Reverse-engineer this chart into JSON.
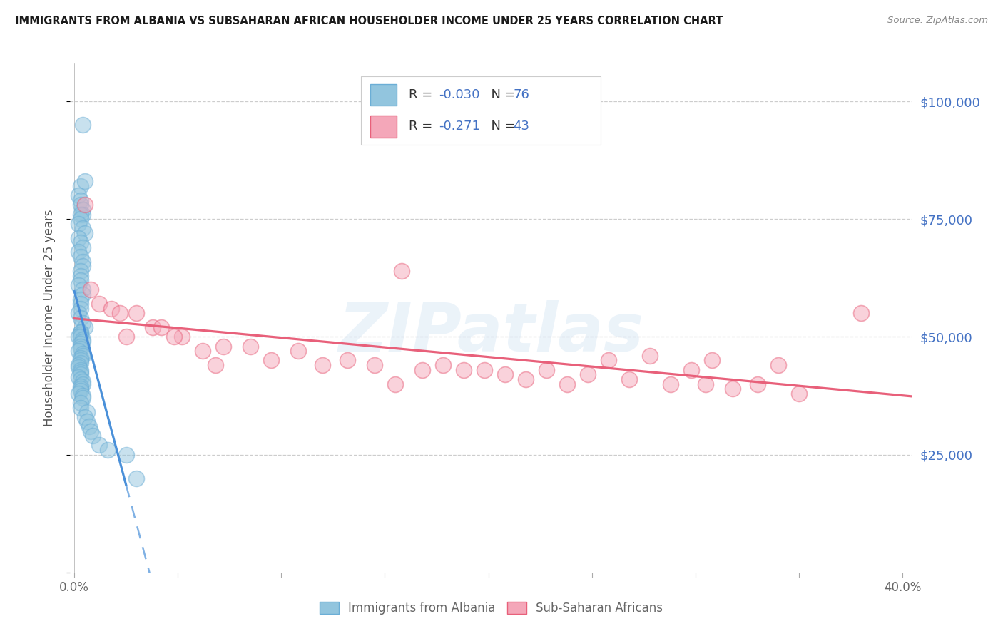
{
  "title": "IMMIGRANTS FROM ALBANIA VS SUBSAHARAN AFRICAN HOUSEHOLDER INCOME UNDER 25 YEARS CORRELATION CHART",
  "source": "Source: ZipAtlas.com",
  "ylabel": "Householder Income Under 25 years",
  "xlabel_tick_vals": [
    0.0,
    0.05,
    0.1,
    0.15,
    0.2,
    0.25,
    0.3,
    0.35,
    0.4
  ],
  "xlabel_major_vals": [
    0.0,
    0.4
  ],
  "xlabel_major_labels": [
    "0.0%",
    "40.0%"
  ],
  "ytick_vals": [
    0,
    25000,
    50000,
    75000,
    100000
  ],
  "ytick_labels_right": [
    "",
    "$25,000",
    "$50,000",
    "$75,000",
    "$100,000"
  ],
  "xlim": [
    -0.002,
    0.405
  ],
  "ylim": [
    0,
    108000
  ],
  "albania_R": "-0.030",
  "albania_N": "76",
  "subsaharan_R": "-0.271",
  "subsaharan_N": "43",
  "albania_color": "#92c5de",
  "albania_edge_color": "#6baed6",
  "subsaharan_color": "#f4a7b9",
  "subsaharan_edge_color": "#e8607a",
  "albania_line_color": "#4a90d9",
  "subsaharan_line_color": "#e8607a",
  "legend_color": "#4472c4",
  "albania_x": [
    0.004,
    0.003,
    0.005,
    0.002,
    0.003,
    0.003,
    0.004,
    0.004,
    0.003,
    0.003,
    0.002,
    0.004,
    0.005,
    0.002,
    0.003,
    0.004,
    0.002,
    0.003,
    0.004,
    0.004,
    0.003,
    0.003,
    0.003,
    0.002,
    0.004,
    0.004,
    0.003,
    0.003,
    0.003,
    0.002,
    0.003,
    0.004,
    0.005,
    0.003,
    0.003,
    0.003,
    0.002,
    0.003,
    0.004,
    0.004,
    0.003,
    0.003,
    0.003,
    0.002,
    0.004,
    0.004,
    0.003,
    0.003,
    0.003,
    0.002,
    0.002,
    0.003,
    0.003,
    0.003,
    0.002,
    0.003,
    0.004,
    0.004,
    0.003,
    0.003,
    0.003,
    0.002,
    0.004,
    0.004,
    0.003,
    0.003,
    0.006,
    0.005,
    0.006,
    0.007,
    0.008,
    0.009,
    0.012,
    0.016,
    0.025,
    0.03
  ],
  "albania_y": [
    95000,
    82000,
    83000,
    80000,
    79000,
    78000,
    77000,
    76000,
    76000,
    75000,
    74000,
    73000,
    72000,
    71000,
    70000,
    69000,
    68000,
    67000,
    66000,
    65000,
    64000,
    63000,
    62000,
    61000,
    60000,
    59000,
    58000,
    57000,
    56000,
    55000,
    54000,
    53000,
    52000,
    51000,
    51000,
    50500,
    50000,
    50000,
    49500,
    49000,
    48500,
    48000,
    47500,
    47000,
    46500,
    46000,
    45500,
    45000,
    44500,
    44000,
    43500,
    43000,
    42500,
    42000,
    41500,
    41000,
    40500,
    40000,
    39500,
    39000,
    38500,
    38000,
    37500,
    37000,
    36000,
    35000,
    34000,
    33000,
    32000,
    31000,
    30000,
    29000,
    27000,
    26000,
    25000,
    20000
  ],
  "subsaharan_x": [
    0.005,
    0.008,
    0.012,
    0.018,
    0.022,
    0.03,
    0.038,
    0.042,
    0.052,
    0.062,
    0.072,
    0.085,
    0.095,
    0.108,
    0.12,
    0.132,
    0.145,
    0.158,
    0.168,
    0.178,
    0.188,
    0.198,
    0.208,
    0.218,
    0.228,
    0.238,
    0.248,
    0.258,
    0.268,
    0.278,
    0.288,
    0.298,
    0.308,
    0.318,
    0.33,
    0.34,
    0.35,
    0.305,
    0.048,
    0.068,
    0.025,
    0.155,
    0.38
  ],
  "subsaharan_y": [
    78000,
    60000,
    57000,
    56000,
    55000,
    55000,
    52000,
    52000,
    50000,
    47000,
    48000,
    48000,
    45000,
    47000,
    44000,
    45000,
    44000,
    64000,
    43000,
    44000,
    43000,
    43000,
    42000,
    41000,
    43000,
    40000,
    42000,
    45000,
    41000,
    46000,
    40000,
    43000,
    45000,
    39000,
    40000,
    44000,
    38000,
    40000,
    50000,
    44000,
    50000,
    40000,
    55000
  ],
  "watermark": "ZIPatlas",
  "background_color": "#ffffff",
  "grid_color": "#c8c8c8",
  "title_color": "#1a1a1a",
  "axis_label_color": "#555555",
  "right_label_color": "#4472c4",
  "bottom_label_color": "#666666"
}
